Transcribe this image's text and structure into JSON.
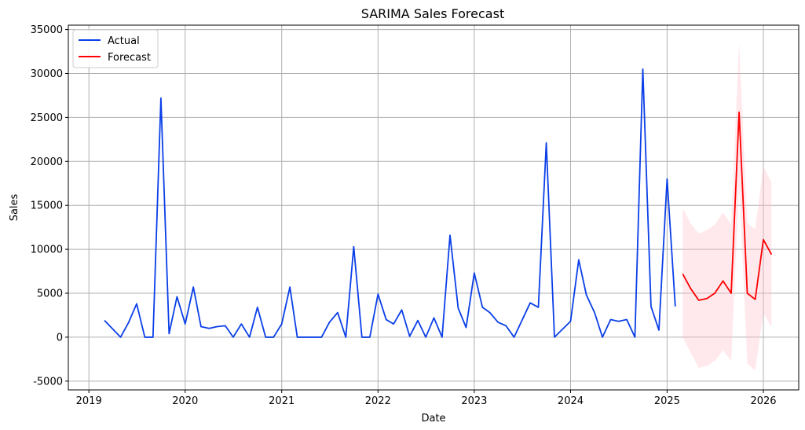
{
  "chart_data": {
    "type": "line",
    "title": "SARIMA Sales Forecast",
    "xlabel": "Date",
    "ylabel": "Sales",
    "xlim": [
      "2018-10-15",
      "2026-05-15"
    ],
    "ylim": [
      -6000,
      35500
    ],
    "x_ticks": [
      "2019",
      "2020",
      "2021",
      "2022",
      "2023",
      "2024",
      "2025",
      "2026"
    ],
    "y_ticks": [
      -5000,
      0,
      5000,
      10000,
      15000,
      20000,
      25000,
      30000,
      35000
    ],
    "grid": true,
    "legend_position": "top-left",
    "colors": {
      "actual": "#0a3fe8",
      "forecast": "#ff0000",
      "band": "#ffc0cb"
    },
    "series": [
      {
        "name": "Actual",
        "points": [
          [
            "2019-03-01",
            1900
          ],
          [
            "2019-05-01",
            0
          ],
          [
            "2019-06-01",
            1700
          ],
          [
            "2019-07-01",
            3800
          ],
          [
            "2019-08-01",
            0
          ],
          [
            "2019-09-01",
            0
          ],
          [
            "2019-10-01",
            27200
          ],
          [
            "2019-11-01",
            400
          ],
          [
            "2019-12-01",
            4600
          ],
          [
            "2020-01-01",
            1500
          ],
          [
            "2020-02-01",
            5700
          ],
          [
            "2020-03-01",
            1200
          ],
          [
            "2020-04-01",
            1000
          ],
          [
            "2020-05-01",
            1200
          ],
          [
            "2020-06-01",
            1300
          ],
          [
            "2020-07-01",
            0
          ],
          [
            "2020-08-01",
            1500
          ],
          [
            "2020-09-01",
            0
          ],
          [
            "2020-10-01",
            3400
          ],
          [
            "2020-11-01",
            0
          ],
          [
            "2020-12-01",
            0
          ],
          [
            "2021-01-01",
            1500
          ],
          [
            "2021-02-01",
            5700
          ],
          [
            "2021-03-01",
            0
          ],
          [
            "2021-04-01",
            0
          ],
          [
            "2021-05-01",
            0
          ],
          [
            "2021-06-01",
            0
          ],
          [
            "2021-07-01",
            1700
          ],
          [
            "2021-08-01",
            2800
          ],
          [
            "2021-09-01",
            0
          ],
          [
            "2021-10-01",
            10300
          ],
          [
            "2021-11-01",
            0
          ],
          [
            "2021-12-01",
            0
          ],
          [
            "2022-01-01",
            4900
          ],
          [
            "2022-02-01",
            2000
          ],
          [
            "2022-03-01",
            1500
          ],
          [
            "2022-04-01",
            3100
          ],
          [
            "2022-05-01",
            100
          ],
          [
            "2022-06-01",
            1900
          ],
          [
            "2022-07-01",
            0
          ],
          [
            "2022-08-01",
            2200
          ],
          [
            "2022-09-01",
            0
          ],
          [
            "2022-10-01",
            11600
          ],
          [
            "2022-11-01",
            3300
          ],
          [
            "2022-12-01",
            1100
          ],
          [
            "2023-01-01",
            7300
          ],
          [
            "2023-02-01",
            3400
          ],
          [
            "2023-03-01",
            2800
          ],
          [
            "2023-04-01",
            1700
          ],
          [
            "2023-05-01",
            1300
          ],
          [
            "2023-06-01",
            0
          ],
          [
            "2023-08-01",
            3900
          ],
          [
            "2023-09-01",
            3400
          ],
          [
            "2023-10-01",
            22100
          ],
          [
            "2023-11-01",
            0
          ],
          [
            "2024-01-01",
            1800
          ],
          [
            "2024-02-01",
            8800
          ],
          [
            "2024-03-01",
            4800
          ],
          [
            "2024-04-01",
            2800
          ],
          [
            "2024-05-01",
            0
          ],
          [
            "2024-06-01",
            2000
          ],
          [
            "2024-07-01",
            1800
          ],
          [
            "2024-08-01",
            2000
          ],
          [
            "2024-09-01",
            0
          ],
          [
            "2024-10-01",
            30500
          ],
          [
            "2024-11-01",
            3500
          ],
          [
            "2024-12-01",
            800
          ],
          [
            "2025-01-01",
            18000
          ],
          [
            "2025-02-01",
            3500
          ]
        ]
      },
      {
        "name": "Forecast",
        "points": [
          [
            "2025-03-01",
            7200
          ],
          [
            "2025-04-01",
            5500
          ],
          [
            "2025-05-01",
            4200
          ],
          [
            "2025-06-01",
            4400
          ],
          [
            "2025-07-01",
            5000
          ],
          [
            "2025-08-01",
            6400
          ],
          [
            "2025-09-01",
            5000
          ],
          [
            "2025-10-01",
            25600
          ],
          [
            "2025-11-01",
            5000
          ],
          [
            "2025-12-01",
            4300
          ],
          [
            "2026-01-01",
            11100
          ],
          [
            "2026-02-01",
            9400
          ]
        ],
        "band_lower": [
          0,
          -1800,
          -3500,
          -3300,
          -2700,
          -1500,
          -2700,
          17500,
          -3000,
          -3800,
          2800,
          1100
        ],
        "band_upper": [
          14700,
          12900,
          11800,
          12200,
          12800,
          14200,
          12800,
          33600,
          13000,
          12300,
          19400,
          17600
        ]
      }
    ]
  }
}
